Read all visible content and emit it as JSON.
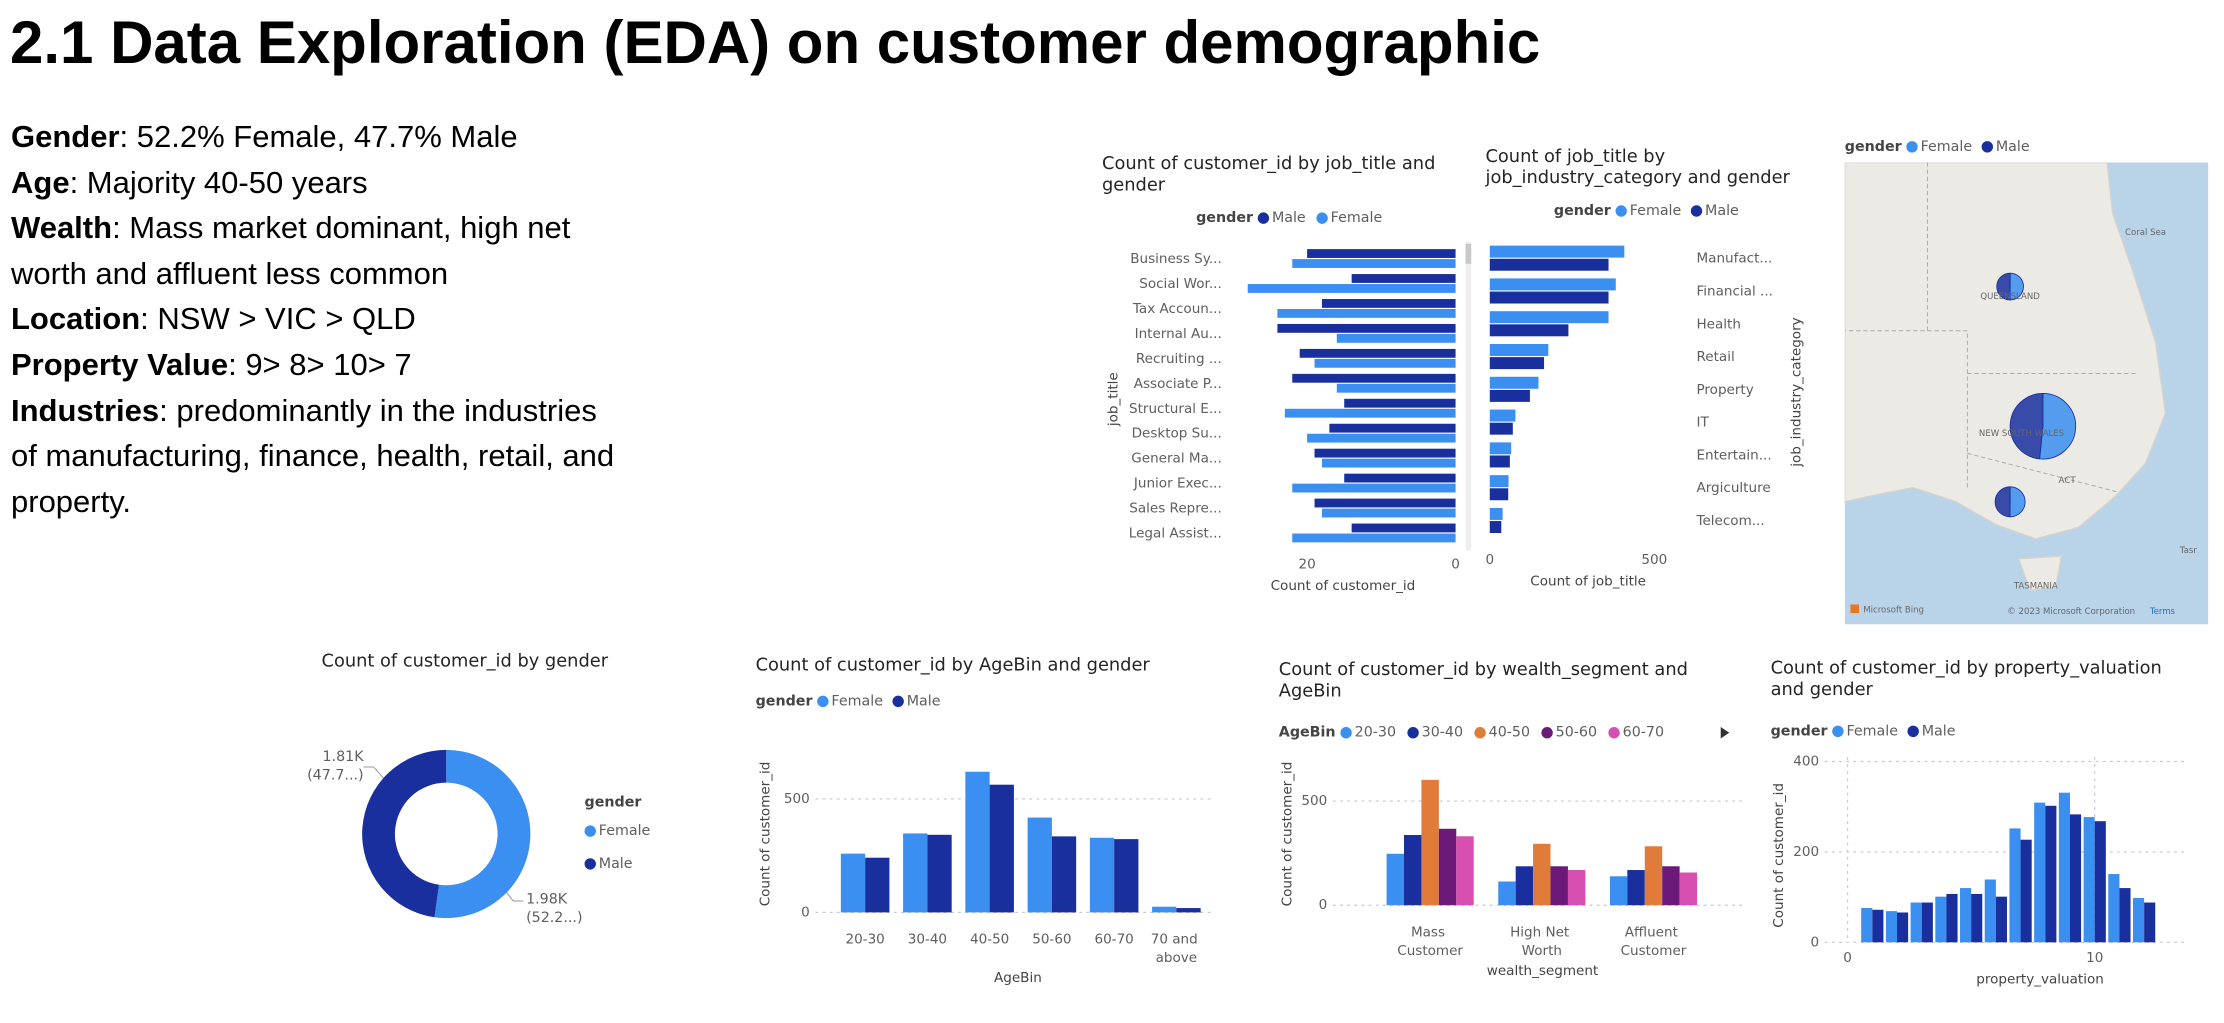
{
  "slide": {
    "title": "2.1 Data Exploration (EDA) on customer demographic",
    "bullets": [
      {
        "label": "Gender",
        "text": ": 52.2%  Female, 47.7%  Male"
      },
      {
        "label": "Age",
        "text": ": Majority 40-50 years"
      },
      {
        "label": "Wealth",
        "text": ": Mass market dominant, high net\nworth and affluent less common"
      },
      {
        "label": "Location",
        "text": ": NSW > VIC > QLD"
      },
      {
        "label": "Property Value",
        "text": ": 9> 8> 10> 7"
      },
      {
        "label": "Industries",
        "text": ": predominantly in the industries\nof manufacturing, finance, health, retail, and\nproperty."
      }
    ]
  },
  "chart_data": [
    {
      "type": "bar",
      "orientation": "horizontal",
      "x_reversed": true,
      "category_axis": "left",
      "title": "Count of customer_id by job_title and gender",
      "legend_title": "gender",
      "categories": [
        "Business Sy...",
        "Social Wor...",
        "Tax Accoun...",
        "Internal Au...",
        "Recruiting ...",
        "Associate P...",
        "Structural E...",
        "Desktop Su...",
        "General Ma...",
        "Junior Exec...",
        "Sales Repre...",
        "Legal Assist..."
      ],
      "series": [
        {
          "name": "Male",
          "color": "#1a2f9e",
          "values": [
            20,
            14,
            18,
            24,
            21,
            22,
            15,
            17,
            19,
            15,
            19,
            14
          ]
        },
        {
          "name": "Female",
          "color": "#3a8ff0",
          "values": [
            22,
            28,
            24,
            16,
            19,
            16,
            23,
            20,
            18,
            22,
            18,
            22
          ]
        }
      ],
      "xlim": [
        0,
        29
      ],
      "xticks": [
        0,
        20
      ],
      "xlabel": "Count of customer_id",
      "ylabel": "job_title"
    },
    {
      "type": "bar",
      "orientation": "horizontal",
      "x_reversed": false,
      "category_axis": "right",
      "title": "Count of job_title by job_industry_category and gender",
      "legend_title": "gender",
      "categories": [
        "Manufact...",
        "Financial ...",
        "Health",
        "Retail",
        "Property",
        "IT",
        "Entertain...",
        "Argiculture",
        "Telecom..."
      ],
      "series": [
        {
          "name": "Female",
          "color": "#3a8ff0",
          "values": [
            409,
            383,
            361,
            178,
            148,
            78,
            65,
            57,
            39
          ]
        },
        {
          "name": "Male",
          "color": "#1a2f9e",
          "values": [
            361,
            361,
            239,
            165,
            122,
            70,
            61,
            56,
            35
          ]
        }
      ],
      "xlim": [
        0,
        520
      ],
      "xticks": [
        0,
        500
      ],
      "xlabel": "Count of job_title",
      "ylabel": "job_industry_category"
    },
    {
      "type": "map",
      "legend_title": "gender",
      "categories": [
        "QUEENSLAND",
        "NEW SOUTH WALES",
        null
      ],
      "series": [
        {
          "name": "Female",
          "color": "#3a8ff0",
          "values": [
            420,
            1060,
            470
          ]
        },
        {
          "name": "Male",
          "color": "#1a2f9e",
          "values": [
            418,
            994,
            469
          ]
        }
      ],
      "labels": [
        "ACT",
        "TASMANIA",
        "Coral Sea",
        "Tasr"
      ],
      "attribution": [
        "Microsoft Bing",
        "© 2023 Microsoft Corporation",
        "Terms"
      ]
    },
    {
      "type": "donut",
      "title": "Count of customer_id by gender",
      "legend_title": "gender",
      "categories": [
        "Female",
        "Male"
      ],
      "colors": [
        "#3a8ff0",
        "#1a2f9e"
      ],
      "values": [
        1980,
        1810
      ],
      "value_labels": [
        "1.98K",
        "1.81K"
      ],
      "percent_labels": [
        "(52.2...)",
        "(47.7...)"
      ]
    },
    {
      "type": "bar",
      "orientation": "vertical",
      "title": "Count of customer_id by AgeBin and gender",
      "legend_title": "gender",
      "categories": [
        "20-30",
        "30-40",
        "40-50",
        "50-60",
        "60-70",
        "70 and above"
      ],
      "series": [
        {
          "name": "Female",
          "color": "#3a8ff0",
          "values": [
            259,
            348,
            620,
            418,
            329,
            25
          ]
        },
        {
          "name": "Male",
          "color": "#1a2f9e",
          "values": [
            241,
            342,
            563,
            335,
            323,
            19
          ]
        }
      ],
      "ylim": [
        0,
        660
      ],
      "yticks": [
        0,
        500
      ],
      "xlabel": "AgeBin",
      "ylabel": "Count of customer_id",
      "grid": true
    },
    {
      "type": "bar",
      "orientation": "vertical",
      "title": "Count of customer_id by wealth_segment and AgeBin",
      "legend_title": "AgeBin",
      "categories": [
        "Mass Customer",
        "High Net Worth",
        "Affluent Customer"
      ],
      "series": [
        {
          "name": "20-30",
          "color": "#3a8ff0",
          "values": [
            247,
            114,
            139
          ]
        },
        {
          "name": "30-40",
          "color": "#1a2f9e",
          "values": [
            337,
            187,
            169
          ]
        },
        {
          "name": "40-50",
          "color": "#e07b39",
          "values": [
            602,
            295,
            283
          ]
        },
        {
          "name": "50-60",
          "color": "#6b1a7a",
          "values": [
            367,
            187,
            187
          ]
        },
        {
          "name": "60-70",
          "color": "#d64fb1",
          "values": [
            331,
            169,
            157
          ]
        }
      ],
      "ylim": [
        0,
        650
      ],
      "yticks": [
        0,
        500
      ],
      "xlabel": "wealth_segment",
      "ylabel": "Count of customer_id",
      "grid": true
    },
    {
      "type": "bar",
      "orientation": "vertical",
      "title": "Count of customer_id by property_valuation and gender",
      "legend_title": "gender",
      "x": [
        1,
        2,
        3,
        4,
        5,
        6,
        7,
        8,
        9,
        10,
        11,
        12
      ],
      "series": [
        {
          "name": "Female",
          "color": "#3a8ff0",
          "values": [
            76,
            69,
            88,
            101,
            120,
            139,
            252,
            309,
            331,
            277,
            151,
            98
          ]
        },
        {
          "name": "Male",
          "color": "#1a2f9e",
          "values": [
            72,
            66,
            88,
            107,
            107,
            101,
            227,
            302,
            283,
            268,
            120,
            88
          ]
        }
      ],
      "xlim": [
        0,
        13.5
      ],
      "xticks": [
        0,
        10
      ],
      "ylim": [
        0,
        410
      ],
      "yticks": [
        0,
        200,
        400
      ],
      "xlabel": "property_valuation",
      "ylabel": "Count of customer_id",
      "grid": true
    }
  ]
}
